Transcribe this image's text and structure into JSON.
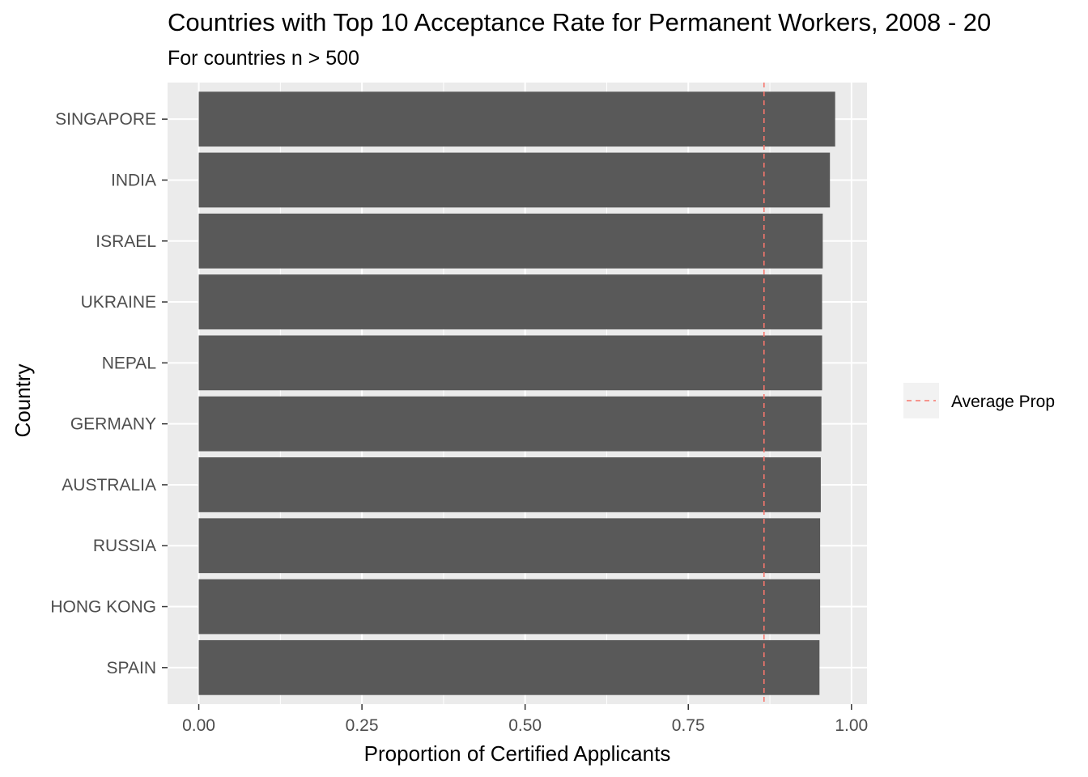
{
  "chart_data": {
    "type": "bar",
    "orientation": "horizontal",
    "title": "Countries with Top 10 Acceptance Rate for Permanent Workers, 2008 - 20",
    "subtitle": "For countries n > 500",
    "xlabel": "Proportion of Certified Applicants",
    "ylabel": "Country",
    "categories": [
      "SINGAPORE",
      "INDIA",
      "ISRAEL",
      "UKRAINE",
      "NEPAL",
      "GERMANY",
      "AUSTRALIA",
      "RUSSIA",
      "HONG KONG",
      "SPAIN"
    ],
    "values": [
      0.975,
      0.967,
      0.956,
      0.955,
      0.955,
      0.954,
      0.953,
      0.952,
      0.952,
      0.951
    ],
    "xlim": [
      -0.0478,
      1.0238
    ],
    "xticks": [
      0.0,
      0.25,
      0.5,
      0.75,
      1.0
    ],
    "xtick_labels": [
      "0.00",
      "0.25",
      "0.50",
      "0.75",
      "1.00"
    ],
    "reference_line": {
      "name": "Average Prop",
      "value": 0.866,
      "style": "dashed",
      "color": "#F8766D"
    },
    "legend": {
      "position": "right",
      "entries": [
        "Average Prop"
      ]
    },
    "grid": true,
    "colors": {
      "bar": "#595959",
      "panel": "#EBEBEB",
      "grid": "#FFFFFF",
      "avg_line": "#F8766D"
    }
  }
}
